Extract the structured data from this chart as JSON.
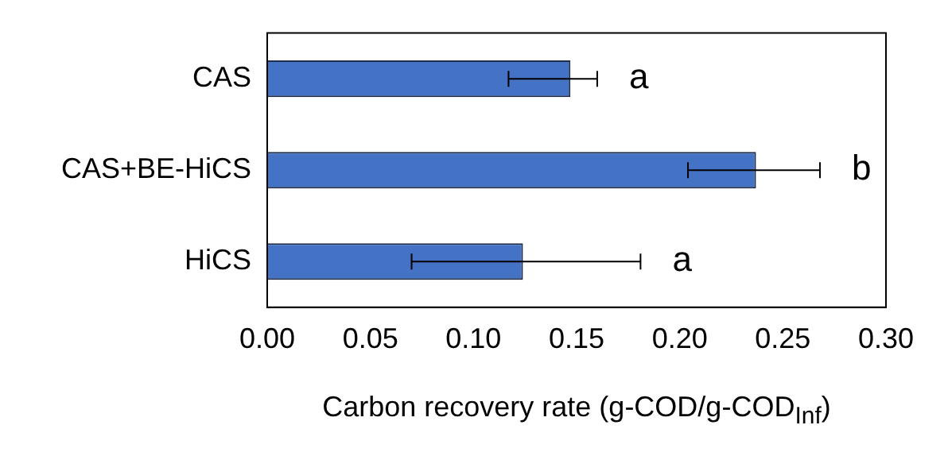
{
  "chart_data": {
    "type": "bar",
    "orientation": "horizontal",
    "categories": [
      "CAS",
      "CAS+BE-HiCS",
      "HiCS"
    ],
    "values": [
      0.147,
      0.237,
      0.124
    ],
    "color": "#4472c4",
    "errors": [
      [
        0.117,
        0.16
      ],
      [
        0.204,
        0.268
      ],
      [
        0.07,
        0.181
      ]
    ],
    "xlim": [
      0,
      0.3
    ],
    "xticks": [
      {
        "value": 0,
        "label": "0.00"
      },
      {
        "value": 0.05,
        "label": "0.05"
      },
      {
        "value": 0.1,
        "label": "0.10"
      },
      {
        "value": 0.15,
        "label": "0.15"
      },
      {
        "value": 0.2,
        "label": "0.20"
      },
      {
        "value": 0.25,
        "label": "0.25"
      },
      {
        "value": 0.3,
        "label": "0.30"
      }
    ],
    "xlabel": "Carbon recovery rate (g-COD/g-COD$_{Inf}$)",
    "annotations": [
      "a",
      "b",
      "a"
    ],
    "grid": false,
    "legend": false
  }
}
